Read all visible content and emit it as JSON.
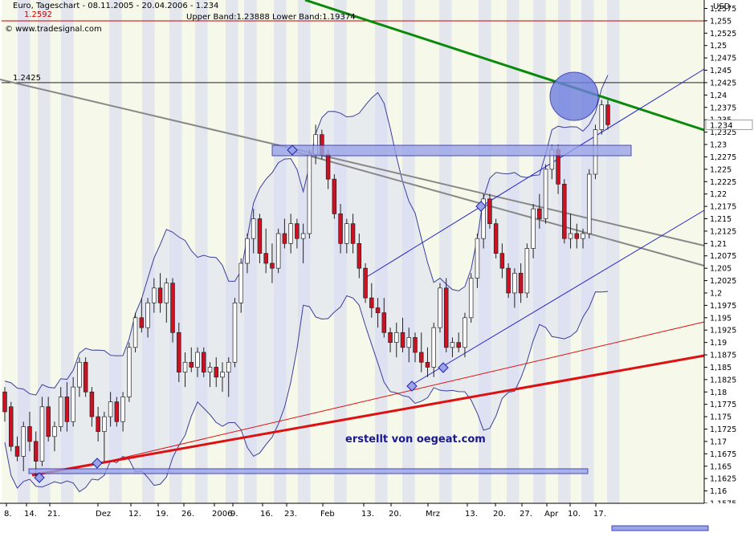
{
  "header": {
    "title": "Euro, Tageschart - 08.11.2005 - 20.04.2006 - 1.234",
    "bands": "Upper Band:1.23888 Lower Band:1.19374",
    "top_value": "1.2592",
    "copyright": "© www.tradesignal.com"
  },
  "watermark": "erstellt von oegeat.com",
  "chart_data": {
    "type": "candlestick",
    "unit_label": "USD",
    "ylim": [
      1.1575,
      1.2592
    ],
    "y_ticks": [
      "1,2575",
      "1,255",
      "1,2525",
      "1,25",
      "1,2475",
      "1,245",
      "1,2425",
      "1,24",
      "1,2375",
      "1,235",
      "1,2325",
      "1,23",
      "1,2275",
      "1,225",
      "1,2225",
      "1,22",
      "1,2175",
      "1,215",
      "1,2125",
      "1,21",
      "1,2075",
      "1,205",
      "1,2025",
      "1,2",
      "1,1975",
      "1,195",
      "1,1925",
      "1,19",
      "1,1875",
      "1,185",
      "1,1825",
      "1,18",
      "1,1775",
      "1,175",
      "1,1725",
      "1,17",
      "1,1675",
      "1,165",
      "1,1625",
      "1,16",
      "1,1575"
    ],
    "x_ticks": [
      "8.",
      "14.",
      "21.",
      "Dez",
      "12.",
      "19.",
      "26.",
      "2006",
      "9.",
      "16.",
      "23.",
      "Feb",
      "13.",
      "20.",
      "Mrz",
      "13.",
      "20.",
      "27.",
      "Apr",
      "10.",
      "17."
    ],
    "last_price_label": "1.234",
    "reference_level": {
      "label": "1.2425",
      "value": 1.2425
    },
    "top_level": 1.2592,
    "candles": [
      {
        "o": 1.18,
        "h": 1.181,
        "l": 1.174,
        "c": 1.176
      },
      {
        "o": 1.177,
        "h": 1.178,
        "l": 1.168,
        "c": 1.169
      },
      {
        "o": 1.169,
        "h": 1.171,
        "l": 1.166,
        "c": 1.167
      },
      {
        "o": 1.167,
        "h": 1.174,
        "l": 1.164,
        "c": 1.173
      },
      {
        "o": 1.173,
        "h": 1.176,
        "l": 1.168,
        "c": 1.17
      },
      {
        "o": 1.17,
        "h": 1.172,
        "l": 1.163,
        "c": 1.166
      },
      {
        "o": 1.166,
        "h": 1.179,
        "l": 1.165,
        "c": 1.177
      },
      {
        "o": 1.177,
        "h": 1.179,
        "l": 1.17,
        "c": 1.171
      },
      {
        "o": 1.171,
        "h": 1.174,
        "l": 1.168,
        "c": 1.173
      },
      {
        "o": 1.173,
        "h": 1.181,
        "l": 1.172,
        "c": 1.179
      },
      {
        "o": 1.179,
        "h": 1.182,
        "l": 1.172,
        "c": 1.174
      },
      {
        "o": 1.174,
        "h": 1.183,
        "l": 1.173,
        "c": 1.181
      },
      {
        "o": 1.181,
        "h": 1.187,
        "l": 1.179,
        "c": 1.186
      },
      {
        "o": 1.186,
        "h": 1.187,
        "l": 1.179,
        "c": 1.18
      },
      {
        "o": 1.18,
        "h": 1.181,
        "l": 1.173,
        "c": 1.175
      },
      {
        "o": 1.175,
        "h": 1.177,
        "l": 1.17,
        "c": 1.172
      },
      {
        "o": 1.172,
        "h": 1.176,
        "l": 1.166,
        "c": 1.175
      },
      {
        "o": 1.175,
        "h": 1.18,
        "l": 1.173,
        "c": 1.178
      },
      {
        "o": 1.178,
        "h": 1.179,
        "l": 1.173,
        "c": 1.174
      },
      {
        "o": 1.174,
        "h": 1.18,
        "l": 1.172,
        "c": 1.179
      },
      {
        "o": 1.179,
        "h": 1.19,
        "l": 1.178,
        "c": 1.189
      },
      {
        "o": 1.189,
        "h": 1.196,
        "l": 1.188,
        "c": 1.195
      },
      {
        "o": 1.195,
        "h": 1.199,
        "l": 1.192,
        "c": 1.193
      },
      {
        "o": 1.193,
        "h": 1.199,
        "l": 1.191,
        "c": 1.198
      },
      {
        "o": 1.198,
        "h": 1.203,
        "l": 1.196,
        "c": 1.201
      },
      {
        "o": 1.201,
        "h": 1.204,
        "l": 1.196,
        "c": 1.198
      },
      {
        "o": 1.198,
        "h": 1.203,
        "l": 1.194,
        "c": 1.202
      },
      {
        "o": 1.202,
        "h": 1.203,
        "l": 1.19,
        "c": 1.192
      },
      {
        "o": 1.192,
        "h": 1.194,
        "l": 1.182,
        "c": 1.184
      },
      {
        "o": 1.184,
        "h": 1.188,
        "l": 1.181,
        "c": 1.186
      },
      {
        "o": 1.186,
        "h": 1.189,
        "l": 1.184,
        "c": 1.185
      },
      {
        "o": 1.185,
        "h": 1.189,
        "l": 1.183,
        "c": 1.188
      },
      {
        "o": 1.188,
        "h": 1.189,
        "l": 1.183,
        "c": 1.184
      },
      {
        "o": 1.184,
        "h": 1.186,
        "l": 1.181,
        "c": 1.185
      },
      {
        "o": 1.185,
        "h": 1.187,
        "l": 1.181,
        "c": 1.183
      },
      {
        "o": 1.183,
        "h": 1.186,
        "l": 1.18,
        "c": 1.184
      },
      {
        "o": 1.184,
        "h": 1.187,
        "l": 1.179,
        "c": 1.186
      },
      {
        "o": 1.186,
        "h": 1.199,
        "l": 1.185,
        "c": 1.198
      },
      {
        "o": 1.198,
        "h": 1.207,
        "l": 1.196,
        "c": 1.206
      },
      {
        "o": 1.206,
        "h": 1.212,
        "l": 1.204,
        "c": 1.211
      },
      {
        "o": 1.211,
        "h": 1.217,
        "l": 1.208,
        "c": 1.215
      },
      {
        "o": 1.215,
        "h": 1.216,
        "l": 1.206,
        "c": 1.208
      },
      {
        "o": 1.208,
        "h": 1.213,
        "l": 1.204,
        "c": 1.206
      },
      {
        "o": 1.206,
        "h": 1.21,
        "l": 1.202,
        "c": 1.205
      },
      {
        "o": 1.205,
        "h": 1.213,
        "l": 1.204,
        "c": 1.212
      },
      {
        "o": 1.212,
        "h": 1.215,
        "l": 1.209,
        "c": 1.21
      },
      {
        "o": 1.21,
        "h": 1.216,
        "l": 1.208,
        "c": 1.214
      },
      {
        "o": 1.214,
        "h": 1.215,
        "l": 1.209,
        "c": 1.211
      },
      {
        "o": 1.211,
        "h": 1.214,
        "l": 1.206,
        "c": 1.212
      },
      {
        "o": 1.212,
        "h": 1.229,
        "l": 1.211,
        "c": 1.228
      },
      {
        "o": 1.228,
        "h": 1.234,
        "l": 1.226,
        "c": 1.232
      },
      {
        "o": 1.232,
        "h": 1.233,
        "l": 1.227,
        "c": 1.228
      },
      {
        "o": 1.228,
        "h": 1.229,
        "l": 1.221,
        "c": 1.223
      },
      {
        "o": 1.223,
        "h": 1.224,
        "l": 1.215,
        "c": 1.216
      },
      {
        "o": 1.216,
        "h": 1.218,
        "l": 1.208,
        "c": 1.21
      },
      {
        "o": 1.21,
        "h": 1.215,
        "l": 1.208,
        "c": 1.214
      },
      {
        "o": 1.214,
        "h": 1.216,
        "l": 1.208,
        "c": 1.21
      },
      {
        "o": 1.21,
        "h": 1.212,
        "l": 1.203,
        "c": 1.205
      },
      {
        "o": 1.205,
        "h": 1.206,
        "l": 1.198,
        "c": 1.199
      },
      {
        "o": 1.199,
        "h": 1.202,
        "l": 1.195,
        "c": 1.197
      },
      {
        "o": 1.197,
        "h": 1.199,
        "l": 1.193,
        "c": 1.196
      },
      {
        "o": 1.196,
        "h": 1.199,
        "l": 1.191,
        "c": 1.192
      },
      {
        "o": 1.192,
        "h": 1.193,
        "l": 1.188,
        "c": 1.19
      },
      {
        "o": 1.19,
        "h": 1.194,
        "l": 1.187,
        "c": 1.192
      },
      {
        "o": 1.192,
        "h": 1.195,
        "l": 1.188,
        "c": 1.189
      },
      {
        "o": 1.189,
        "h": 1.193,
        "l": 1.186,
        "c": 1.191
      },
      {
        "o": 1.191,
        "h": 1.192,
        "l": 1.186,
        "c": 1.188
      },
      {
        "o": 1.188,
        "h": 1.192,
        "l": 1.184,
        "c": 1.186
      },
      {
        "o": 1.186,
        "h": 1.189,
        "l": 1.183,
        "c": 1.185
      },
      {
        "o": 1.185,
        "h": 1.194,
        "l": 1.183,
        "c": 1.193
      },
      {
        "o": 1.193,
        "h": 1.202,
        "l": 1.192,
        "c": 1.201
      },
      {
        "o": 1.201,
        "h": 1.203,
        "l": 1.188,
        "c": 1.189
      },
      {
        "o": 1.189,
        "h": 1.191,
        "l": 1.187,
        "c": 1.19
      },
      {
        "o": 1.19,
        "h": 1.192,
        "l": 1.188,
        "c": 1.189
      },
      {
        "o": 1.189,
        "h": 1.196,
        "l": 1.187,
        "c": 1.195
      },
      {
        "o": 1.195,
        "h": 1.204,
        "l": 1.194,
        "c": 1.203
      },
      {
        "o": 1.203,
        "h": 1.212,
        "l": 1.201,
        "c": 1.211
      },
      {
        "o": 1.211,
        "h": 1.22,
        "l": 1.209,
        "c": 1.219
      },
      {
        "o": 1.219,
        "h": 1.22,
        "l": 1.213,
        "c": 1.214
      },
      {
        "o": 1.214,
        "h": 1.215,
        "l": 1.207,
        "c": 1.208
      },
      {
        "o": 1.208,
        "h": 1.21,
        "l": 1.203,
        "c": 1.205
      },
      {
        "o": 1.205,
        "h": 1.206,
        "l": 1.199,
        "c": 1.2
      },
      {
        "o": 1.2,
        "h": 1.205,
        "l": 1.197,
        "c": 1.204
      },
      {
        "o": 1.204,
        "h": 1.206,
        "l": 1.198,
        "c": 1.2
      },
      {
        "o": 1.2,
        "h": 1.21,
        "l": 1.199,
        "c": 1.209
      },
      {
        "o": 1.209,
        "h": 1.218,
        "l": 1.207,
        "c": 1.217
      },
      {
        "o": 1.217,
        "h": 1.22,
        "l": 1.213,
        "c": 1.215
      },
      {
        "o": 1.215,
        "h": 1.226,
        "l": 1.214,
        "c": 1.225
      },
      {
        "o": 1.225,
        "h": 1.23,
        "l": 1.223,
        "c": 1.229
      },
      {
        "o": 1.229,
        "h": 1.23,
        "l": 1.22,
        "c": 1.222
      },
      {
        "o": 1.222,
        "h": 1.223,
        "l": 1.21,
        "c": 1.211
      },
      {
        "o": 1.211,
        "h": 1.216,
        "l": 1.209,
        "c": 1.212
      },
      {
        "o": 1.212,
        "h": 1.214,
        "l": 1.209,
        "c": 1.211
      },
      {
        "o": 1.211,
        "h": 1.213,
        "l": 1.209,
        "c": 1.212
      },
      {
        "o": 1.212,
        "h": 1.225,
        "l": 1.211,
        "c": 1.224
      },
      {
        "o": 1.224,
        "h": 1.234,
        "l": 1.223,
        "c": 1.233
      },
      {
        "o": 1.233,
        "h": 1.239,
        "l": 1.232,
        "c": 1.238
      },
      {
        "o": 1.238,
        "h": 1.239,
        "l": 1.233,
        "c": 1.234
      }
    ]
  }
}
